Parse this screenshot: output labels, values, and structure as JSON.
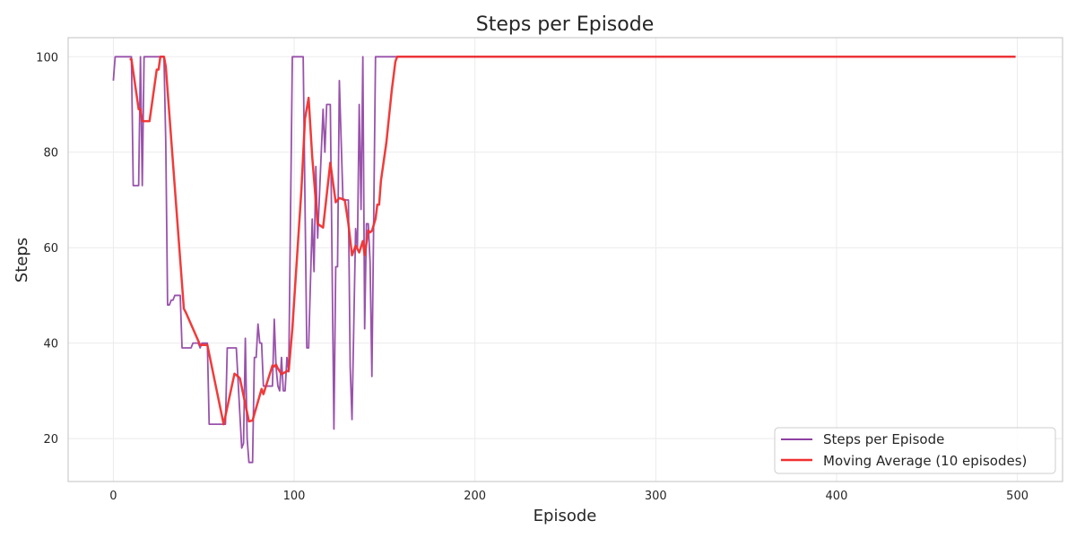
{
  "chart_data": {
    "type": "line",
    "title": "Steps per Episode",
    "xlabel": "Episode",
    "ylabel": "Steps",
    "xlim": [
      -25,
      525
    ],
    "ylim": [
      11,
      104
    ],
    "xticks": [
      0,
      100,
      200,
      300,
      400,
      500
    ],
    "yticks": [
      20,
      40,
      60,
      80,
      100
    ],
    "grid": true,
    "legend_position": "lower-right",
    "series": [
      {
        "name": "Steps per Episode",
        "color": "#8e3fa2",
        "points": [
          [
            0,
            95
          ],
          [
            1,
            100
          ],
          [
            10,
            100
          ],
          [
            11,
            73
          ],
          [
            14,
            73
          ],
          [
            15,
            100
          ],
          [
            16,
            73
          ],
          [
            17,
            100
          ],
          [
            27,
            100
          ],
          [
            28,
            100
          ],
          [
            29,
            82
          ],
          [
            30,
            48
          ],
          [
            31,
            48
          ],
          [
            32,
            49
          ],
          [
            33,
            49
          ],
          [
            34,
            50
          ],
          [
            37,
            50
          ],
          [
            38,
            39
          ],
          [
            43,
            39
          ],
          [
            44,
            40
          ],
          [
            47,
            40
          ],
          [
            48,
            39
          ],
          [
            49,
            40
          ],
          [
            52,
            40
          ],
          [
            53,
            23
          ],
          [
            62,
            23
          ],
          [
            63,
            39
          ],
          [
            68,
            39
          ],
          [
            70,
            25
          ],
          [
            71,
            18
          ],
          [
            72,
            19
          ],
          [
            73,
            41
          ],
          [
            74,
            20
          ],
          [
            75,
            15
          ],
          [
            77,
            15
          ],
          [
            78,
            37
          ],
          [
            79,
            37
          ],
          [
            80,
            44
          ],
          [
            81,
            40
          ],
          [
            82,
            40
          ],
          [
            83,
            31
          ],
          [
            88,
            31
          ],
          [
            89,
            45
          ],
          [
            90,
            35
          ],
          [
            91,
            31
          ],
          [
            92,
            30
          ],
          [
            93,
            37
          ],
          [
            94,
            30
          ],
          [
            95,
            30
          ],
          [
            96,
            37
          ],
          [
            97,
            34
          ],
          [
            99,
            100
          ],
          [
            105,
            100
          ],
          [
            107,
            39
          ],
          [
            108,
            39
          ],
          [
            110,
            66
          ],
          [
            111,
            55
          ],
          [
            112,
            77
          ],
          [
            113,
            62
          ],
          [
            116,
            89
          ],
          [
            117,
            80
          ],
          [
            118,
            90
          ],
          [
            120,
            90
          ],
          [
            122,
            22
          ],
          [
            123,
            56
          ],
          [
            124,
            56
          ],
          [
            125,
            95
          ],
          [
            127,
            70
          ],
          [
            130,
            70
          ],
          [
            131,
            35
          ],
          [
            132,
            24
          ],
          [
            134,
            64
          ],
          [
            135,
            60
          ],
          [
            136,
            90
          ],
          [
            137,
            68
          ],
          [
            138,
            100
          ],
          [
            139,
            43
          ],
          [
            140,
            65
          ],
          [
            141,
            65
          ],
          [
            142,
            57
          ],
          [
            143,
            33
          ],
          [
            144,
            66
          ],
          [
            145,
            100
          ],
          [
            499,
            100
          ]
        ]
      },
      {
        "name": "Moving Average (10 episodes)",
        "color": "#f03030",
        "points": [
          [
            9,
            99.5
          ],
          [
            10,
            99.5
          ],
          [
            14,
            89
          ],
          [
            15,
            89
          ],
          [
            16,
            86.5
          ],
          [
            20,
            86.5
          ],
          [
            24,
            97.3
          ],
          [
            25,
            97.3
          ],
          [
            26,
            100
          ],
          [
            28,
            100
          ],
          [
            29,
            98
          ],
          [
            39,
            47.2
          ],
          [
            40,
            46.5
          ],
          [
            48,
            39.6
          ],
          [
            52,
            39.6
          ],
          [
            61,
            23
          ],
          [
            67,
            33.6
          ],
          [
            69,
            33
          ],
          [
            70,
            32.6
          ],
          [
            75,
            23.6
          ],
          [
            77,
            23.8
          ],
          [
            82,
            30.4
          ],
          [
            83,
            29.3
          ],
          [
            88,
            35.3
          ],
          [
            89,
            35.1
          ],
          [
            90,
            35.5
          ],
          [
            91,
            34.7
          ],
          [
            93,
            33.5
          ],
          [
            97,
            34.3
          ],
          [
            99,
            43
          ],
          [
            104,
            72
          ],
          [
            106,
            87
          ],
          [
            108,
            91.4
          ],
          [
            110,
            79
          ],
          [
            113,
            65
          ],
          [
            116,
            64.2
          ],
          [
            120,
            77.8
          ],
          [
            123,
            69.5
          ],
          [
            125,
            70.4
          ],
          [
            128,
            70
          ],
          [
            130,
            65
          ],
          [
            132,
            58.4
          ],
          [
            134,
            60.4
          ],
          [
            136,
            59
          ],
          [
            138,
            61.4
          ],
          [
            139,
            58.4
          ],
          [
            141,
            63.6
          ],
          [
            142,
            63.2
          ],
          [
            143,
            63.5
          ],
          [
            145,
            66
          ],
          [
            146,
            69
          ],
          [
            147,
            69
          ],
          [
            148,
            74
          ],
          [
            151,
            82
          ],
          [
            154,
            93
          ],
          [
            156,
            99
          ],
          [
            157,
            100
          ],
          [
            499,
            100
          ]
        ]
      }
    ]
  }
}
